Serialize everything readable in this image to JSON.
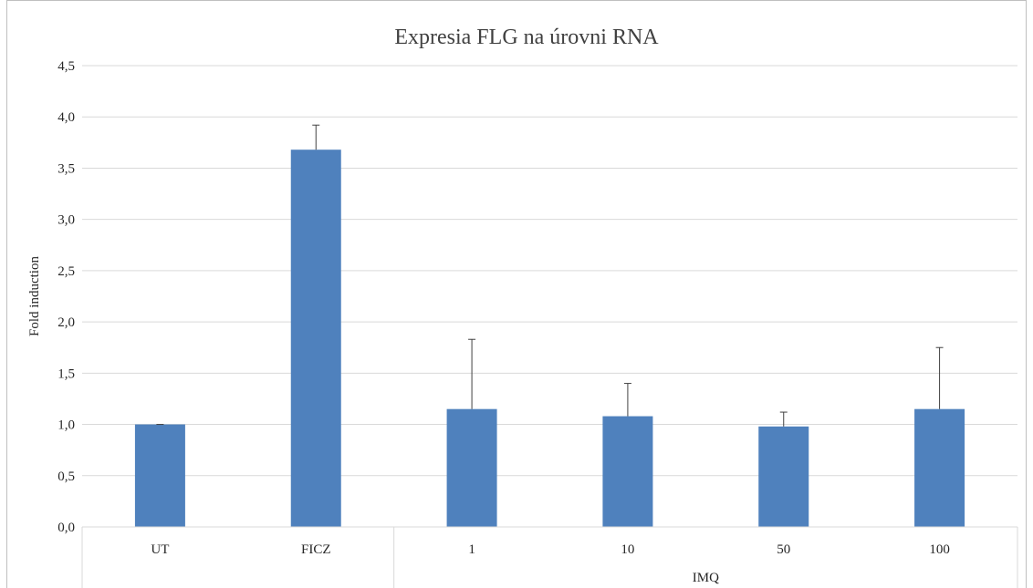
{
  "chart_data": {
    "type": "bar",
    "title": "Expresia FLG na úrovni RNA",
    "xlabel": "",
    "ylabel": "Fold induction",
    "ylim": [
      0,
      4.5
    ],
    "y_ticks": [
      "0,0",
      "0,5",
      "1,0",
      "1,5",
      "2,0",
      "2,5",
      "3,0",
      "3,5",
      "4,0",
      "4,5"
    ],
    "categories": [
      "UT",
      "FICZ",
      "1",
      "10",
      "50",
      "100"
    ],
    "group_labels": [
      {
        "label": "IMQ",
        "categories": [
          "1",
          "10",
          "50",
          "100"
        ]
      }
    ],
    "series": [
      {
        "values": [
          1.0,
          3.68,
          1.15,
          1.08,
          0.98,
          1.15
        ],
        "error_upper": [
          0.0,
          0.24,
          0.68,
          0.32,
          0.14,
          0.6
        ]
      }
    ],
    "grid": true,
    "legend": "none",
    "bar_color": "#4f81bd",
    "grid_color": "#d9d9d9"
  }
}
